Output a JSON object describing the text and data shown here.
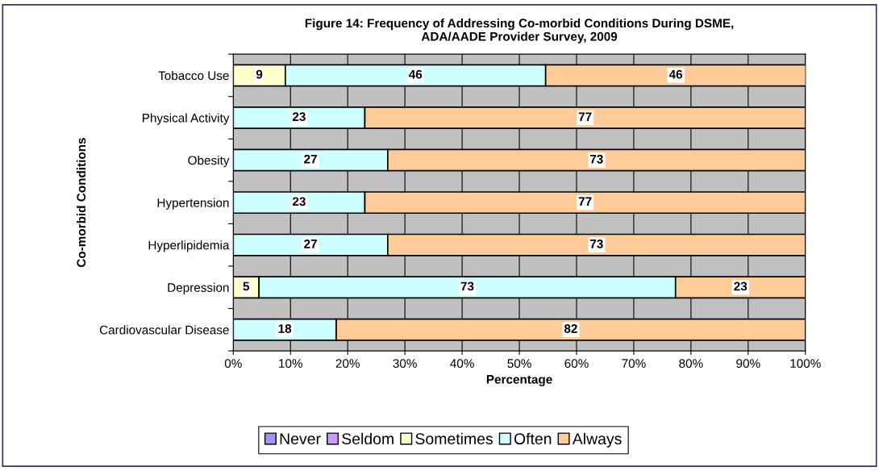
{
  "chart_data": {
    "type": "bar",
    "orientation": "horizontal",
    "stacked": true,
    "title": "Figure 14: Frequency of Addressing Co-morbid Conditions During DSME,\nADA/AADE Provider Survey, 2009",
    "xlabel": "Percentage",
    "ylabel": "Co-morbid Conditions",
    "categories": [
      "Tobacco Use",
      "Physical Activity",
      "Obesity",
      "Hypertension",
      "Hyperlipidemia",
      "Depression",
      "Cardiovascular Disease"
    ],
    "series": [
      {
        "name": "Never",
        "color": "#9999ff",
        "values": [
          0,
          0,
          0,
          0,
          0,
          0,
          0
        ],
        "value_labels": [
          null,
          null,
          null,
          null,
          null,
          null,
          null
        ]
      },
      {
        "name": "Seldom",
        "color": "#cc99ff",
        "values": [
          0,
          0,
          0,
          0,
          0,
          0,
          0
        ],
        "value_labels": [
          null,
          null,
          null,
          null,
          null,
          null,
          null
        ]
      },
      {
        "name": "Sometimes",
        "color": "#ffffcc",
        "values": [
          9.1,
          0,
          0,
          0,
          0,
          4.5,
          0
        ],
        "value_labels": [
          "9",
          null,
          null,
          null,
          null,
          "5",
          null
        ]
      },
      {
        "name": "Often",
        "color": "#ccffff",
        "values": [
          45.5,
          23,
          27,
          23,
          27,
          72.8,
          18
        ],
        "value_labels": [
          "46",
          "23",
          "27",
          "23",
          "27",
          "73",
          "18"
        ]
      },
      {
        "name": "Always",
        "color": "#ffcc99",
        "values": [
          45.5,
          77,
          73,
          77,
          73,
          22.7,
          82
        ],
        "value_labels": [
          "46",
          "77",
          "73",
          "77",
          "73",
          "23",
          "82"
        ]
      }
    ],
    "xlim": [
      0,
      100
    ],
    "xticks": [
      {
        "value": 0,
        "label": "0%"
      },
      {
        "value": 10,
        "label": "10%"
      },
      {
        "value": 20,
        "label": "20%"
      },
      {
        "value": 30,
        "label": "30%"
      },
      {
        "value": 40,
        "label": "40%"
      },
      {
        "value": 50,
        "label": "50%"
      },
      {
        "value": 60,
        "label": "60%"
      },
      {
        "value": 70,
        "label": "70%"
      },
      {
        "value": 80,
        "label": "80%"
      },
      {
        "value": 90,
        "label": "90%"
      },
      {
        "value": 100,
        "label": "100%"
      }
    ],
    "grid": "x",
    "legend": "bottom"
  }
}
